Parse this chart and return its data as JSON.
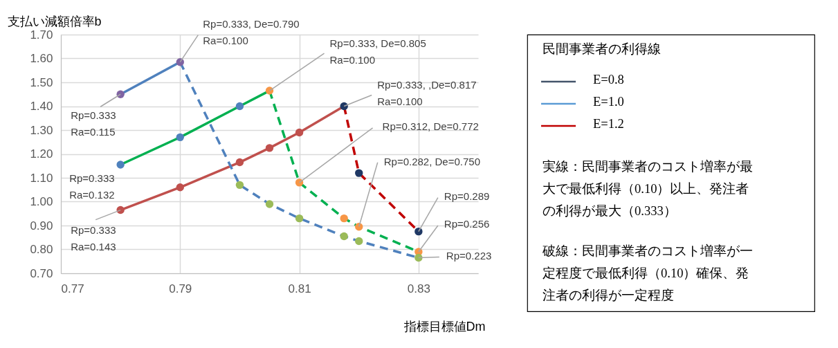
{
  "chart_data": [
    {
      "type": "line",
      "xlabel": "指標目標値Dm",
      "ylabel": "支払い減額倍率b",
      "xlim": [
        0.77,
        0.84
      ],
      "xticks": [
        0.77,
        0.79,
        0.81,
        0.83
      ],
      "ylim": [
        0.7,
        1.7
      ],
      "yticks": [
        {
          "value": 0.7,
          "label": "0.70"
        },
        {
          "value": 0.8,
          "label": "0.80"
        },
        {
          "value": 0.9,
          "label": "0.90"
        },
        {
          "value": 1.0,
          "label": "1.00"
        },
        {
          "value": 1.1,
          "label": "1.10"
        },
        {
          "value": 1.2,
          "label": "1.20"
        },
        {
          "value": 1.3,
          "label": "1.30"
        },
        {
          "value": 1.4,
          "label": "1.40"
        },
        {
          "value": 1.5,
          "label": "1.50"
        },
        {
          "value": 1.6,
          "label": "1.60"
        },
        {
          "value": 1.7,
          "label": "1.70"
        }
      ],
      "grid": true,
      "series": [
        {
          "type": "line",
          "line_style": "solid",
          "color": "#4f81bd",
          "x": [
            0.78,
            0.79
          ],
          "values": [
            1.45,
            1.585
          ]
        },
        {
          "type": "line",
          "line_style": "solid",
          "color": "#00b050",
          "x": [
            0.78,
            0.79,
            0.8,
            0.805
          ],
          "values": [
            1.155,
            1.27,
            1.4,
            1.465
          ]
        },
        {
          "type": "line",
          "line_style": "solid",
          "color": "#c0504d",
          "x": [
            0.78,
            0.79,
            0.8,
            0.805,
            0.81,
            0.8175
          ],
          "values": [
            0.965,
            1.06,
            1.165,
            1.225,
            1.29,
            1.4
          ]
        },
        {
          "type": "line",
          "line_style": "dashed",
          "color": "#4f81bd",
          "x": [
            0.79,
            0.8,
            0.805,
            0.81,
            0.8175,
            0.82,
            0.83
          ],
          "values": [
            1.585,
            1.07,
            0.99,
            0.93,
            0.855,
            0.835,
            0.765
          ]
        },
        {
          "type": "line",
          "line_style": "dashed",
          "color": "#00b050",
          "x": [
            0.805,
            0.81,
            0.8175,
            0.82,
            0.83
          ],
          "values": [
            1.465,
            1.08,
            0.93,
            0.895,
            0.79
          ]
        },
        {
          "type": "line",
          "line_style": "dashed",
          "color": "#c00000",
          "x": [
            0.8175,
            0.82,
            0.83
          ],
          "values": [
            1.4,
            1.12,
            0.875
          ]
        },
        {
          "type": "scatter",
          "marker": "circle",
          "color": "#8064a2",
          "x": [
            0.78,
            0.79
          ],
          "values": [
            1.45,
            1.585
          ]
        },
        {
          "type": "scatter",
          "marker": "circle",
          "color": "#4f81bd",
          "x": [
            0.78,
            0.79,
            0.8
          ],
          "values": [
            1.155,
            1.27,
            1.4
          ]
        },
        {
          "type": "scatter",
          "marker": "circle",
          "color": "#c0504d",
          "x": [
            0.78,
            0.79,
            0.8,
            0.805,
            0.81
          ],
          "values": [
            0.965,
            1.06,
            1.165,
            1.225,
            1.29
          ]
        },
        {
          "type": "scatter",
          "marker": "circle",
          "color": "#f79646",
          "x": [
            0.805,
            0.81,
            0.8175,
            0.82,
            0.83
          ],
          "values": [
            1.465,
            1.08,
            0.93,
            0.895,
            0.79
          ]
        },
        {
          "type": "scatter",
          "marker": "circle",
          "color": "#1f3864",
          "x": [
            0.8175,
            0.82,
            0.83
          ],
          "values": [
            1.4,
            1.12,
            0.875
          ]
        },
        {
          "type": "scatter",
          "marker": "circle",
          "color": "#9bbb59",
          "x": [
            0.8,
            0.805,
            0.81,
            0.8175,
            0.82,
            0.83
          ],
          "values": [
            1.07,
            0.99,
            0.93,
            0.855,
            0.835,
            0.765
          ]
        }
      ],
      "annotations": [
        {
          "text": "Rp=0.333, De=0.790\nRa=0.100",
          "x": 0.79,
          "y": 1.585
        },
        {
          "text": "Rp=0.333, De=0.805\nRa=0.100",
          "x": 0.805,
          "y": 1.465
        },
        {
          "text": "Rp=0.333, ,De=0.817\nRa=0.100",
          "x": 0.8175,
          "y": 1.4
        },
        {
          "text": "Rp=0.312, De=0.772",
          "x": 0.81,
          "y": 1.08
        },
        {
          "text": "Rp=0.282, De=0.750",
          "x": 0.82,
          "y": 0.895
        },
        {
          "text": "Rp=0.289",
          "x": 0.83,
          "y": 0.875
        },
        {
          "text": "Rp=0.256",
          "x": 0.83,
          "y": 0.79
        },
        {
          "text": "Rp=0.223",
          "x": 0.83,
          "y": 0.765
        },
        {
          "text": "Rp=0.333\nRa=0.115",
          "x": 0.78,
          "y": 1.45
        },
        {
          "text": "Rp=0.333\nRa=0.132",
          "x": 0.78,
          "y": 1.155
        },
        {
          "text": "Rp=0.333\nRa=0.143",
          "x": 0.78,
          "y": 0.965
        }
      ]
    },
    {
      "type": "other",
      "title": "民間事業者の利得線",
      "series": [
        {
          "name": "E=0.8",
          "color": "#44546a"
        },
        {
          "name": "E=1.0",
          "color": "#5b9bd5"
        },
        {
          "name": "E=1.2",
          "color": "#c00000"
        }
      ],
      "annotations": [
        "実線：民間事業者のコスト増率が最大で最低利得（0.10）以上、発注者の利得が最大（0.333）",
        "破線：民間事業者のコスト増率が一定程度で最低利得（0.10）確保、発注者の利得が一定程度"
      ]
    }
  ]
}
